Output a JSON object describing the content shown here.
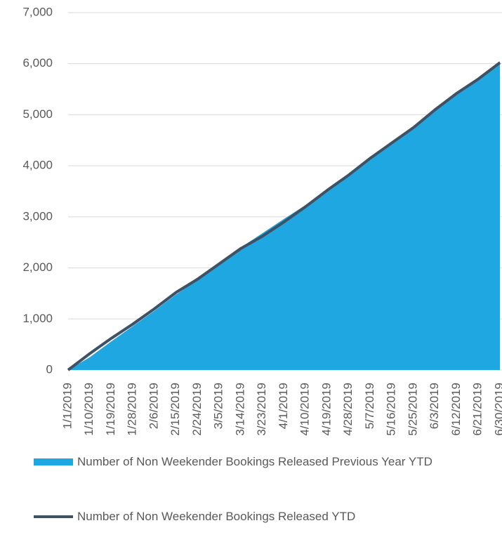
{
  "chart_data": {
    "type": "area_line",
    "categories": [
      "1/1/2019",
      "1/10/2019",
      "1/19/2019",
      "1/28/2019",
      "2/6/2019",
      "2/15/2019",
      "2/24/2019",
      "3/5/2019",
      "3/14/2019",
      "3/23/2019",
      "4/1/2019",
      "4/10/2019",
      "4/19/2019",
      "4/28/2019",
      "5/7/2019",
      "5/16/2019",
      "5/25/2019",
      "6/3/2019",
      "6/12/2019",
      "6/21/2019",
      "6/30/2019"
    ],
    "series": [
      {
        "name": "Number of Non Weekender Bookings Released Previous Year YTD",
        "type": "area",
        "color": "#1ea7e1",
        "values": [
          0,
          250,
          560,
          860,
          1160,
          1480,
          1760,
          2080,
          2400,
          2680,
          2960,
          3230,
          3540,
          3830,
          4140,
          4450,
          4780,
          5080,
          5400,
          5680,
          6050
        ]
      },
      {
        "name": "Number of Non Weekender Bookings Released YTD",
        "type": "line",
        "color": "#3b5369",
        "values": [
          0,
          320,
          620,
          900,
          1200,
          1520,
          1780,
          2080,
          2380,
          2620,
          2900,
          3200,
          3520,
          3820,
          4150,
          4450,
          4750,
          5100,
          5420,
          5700,
          6020
        ]
      }
    ],
    "ylim": [
      0,
      7000
    ],
    "yticks": [
      0,
      {
        "value": 1000,
        "label": "1,000"
      },
      {
        "value": 2000,
        "label": "2,000"
      },
      {
        "value": 3000,
        "label": "3,000"
      },
      {
        "value": 4000,
        "label": "4,000"
      },
      {
        "value": 5000,
        "label": "5,000"
      },
      {
        "value": 6000,
        "label": "6,000"
      },
      {
        "value": 7000,
        "label": "7,000"
      }
    ],
    "grid": true
  }
}
